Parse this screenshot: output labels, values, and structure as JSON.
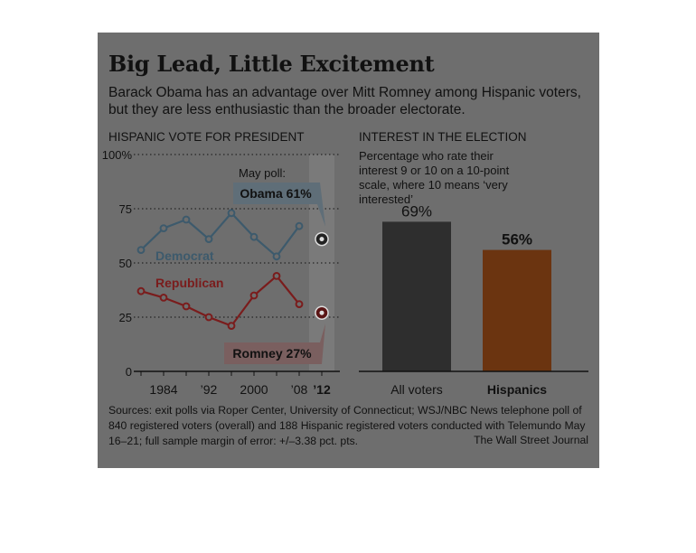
{
  "title": "Big Lead, Little Excitement",
  "subtitle": "Barack Obama has an advantage over Mitt Romney among Hispanic voters, but they are less enthusiastic than the broader electorate.",
  "footer": "Sources: exit polls via Roper Center, University of Connecticut; WSJ/NBC News telephone poll of 840 registered voters (overall) and 188 Hispanic registered voters conducted with Telemundo May 16–21; full sample margin of error: +/–3.38 pct. pts.",
  "credit": "The Wall Street Journal",
  "colors": {
    "background": "#6e6e6e",
    "democrat": "#3d5a6c",
    "republican": "#7a1c1c",
    "all_voters_bar": "#2e2e2e",
    "hispanics_bar": "#6b3410"
  },
  "chart_data": [
    {
      "type": "line",
      "title": "HISPANIC VOTE FOR PRESIDENT",
      "x": [
        1980,
        1984,
        1988,
        1992,
        1996,
        2000,
        2004,
        2008
      ],
      "x_tick_labels": [
        "1984",
        "’92",
        "2000",
        "’08",
        "’12"
      ],
      "x_ticks": [
        1984,
        1992,
        2000,
        2008,
        2012
      ],
      "y_ticks": [
        "0",
        "25",
        "50",
        "75",
        "100%"
      ],
      "ylim": [
        0,
        100
      ],
      "series": [
        {
          "name": "Democrat",
          "values": [
            56,
            66,
            70,
            61,
            73,
            62,
            53,
            67
          ]
        },
        {
          "name": "Republican",
          "values": [
            37,
            34,
            30,
            25,
            21,
            35,
            44,
            31
          ]
        }
      ],
      "poll_note": "May poll:",
      "poll": [
        {
          "label": "Obama 61%",
          "x": 2012,
          "value": 61
        },
        {
          "label": "Romney 27%",
          "x": 2012,
          "value": 27
        }
      ]
    },
    {
      "type": "bar",
      "title": "INTEREST IN THE ELECTION",
      "note": "Percentage who rate their interest 9 or 10 on a 10-point scale, where 10 means ‘very interested’",
      "categories": [
        "All voters",
        "Hispanics"
      ],
      "values": [
        69,
        56
      ],
      "value_labels": [
        "69%",
        "56%"
      ],
      "ylim": [
        0,
        100
      ]
    }
  ]
}
